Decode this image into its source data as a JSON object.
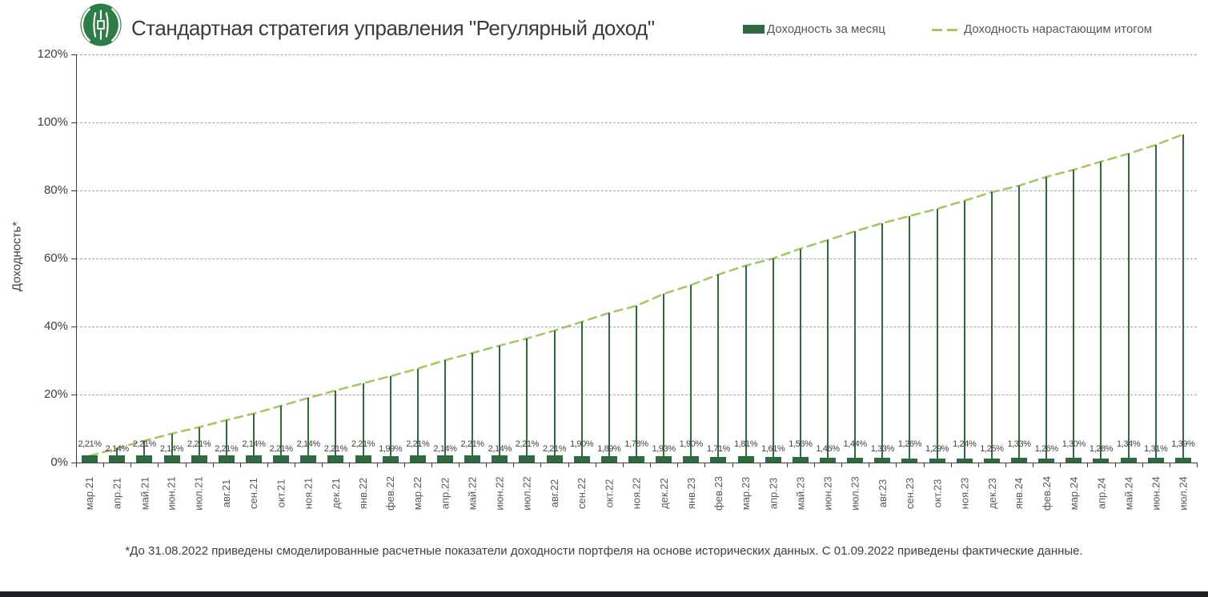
{
  "header": {
    "title": "Стандартная стратегия управления \"Регулярный доход\"",
    "logo_color": "#2e7d46"
  },
  "legend": [
    {
      "label": "Доходность за месяц",
      "swatch": "solid-bar",
      "color": "#2e6b3f"
    },
    {
      "label": "Доходность нарастающим итогом",
      "swatch": "dashed-line",
      "color": "#a4c961"
    }
  ],
  "chart_data": {
    "type": "bar",
    "title": "Стандартная стратегия управления \"Регулярный доход\"",
    "ylabel": "Доходность*",
    "xlabel": "",
    "ylim": [
      0,
      120
    ],
    "ytick_step": 20,
    "yticks": [
      "0%",
      "20%",
      "40%",
      "60%",
      "80%",
      "100%",
      "120%"
    ],
    "grid": "dashed-horizontal",
    "legend_position": "top-right",
    "categories": [
      "мар.21",
      "апр.21",
      "май.21",
      "июн.21",
      "июл.21",
      "авг.21",
      "сен.21",
      "окт.21",
      "ноя.21",
      "дек.21",
      "янв.22",
      "фев.22",
      "мар.22",
      "апр.22",
      "май.22",
      "июн.22",
      "июл.22",
      "авг.22",
      "сен.22",
      "окт.22",
      "ноя.22",
      "дек.22",
      "янв.23",
      "фев.23",
      "мар.23",
      "апр.23",
      "май.23",
      "июн.23",
      "июл.23",
      "авг.23",
      "сен.23",
      "окт.23",
      "ноя.23",
      "дек.23",
      "янв.24",
      "фев.24",
      "мар.24",
      "апр.24",
      "май.24",
      "июн.24",
      "июл.24"
    ],
    "series": [
      {
        "name": "Доходность за месяц",
        "type": "bar",
        "color": "#2e6b3f",
        "values": [
          2.21,
          2.14,
          2.21,
          2.14,
          2.21,
          2.21,
          2.14,
          2.21,
          2.14,
          2.21,
          2.21,
          1.99,
          2.21,
          2.14,
          2.21,
          2.14,
          2.21,
          2.21,
          1.9,
          1.89,
          1.78,
          1.93,
          1.9,
          1.71,
          1.81,
          1.61,
          1.56,
          1.46,
          1.44,
          1.33,
          1.26,
          1.29,
          1.24,
          1.25,
          1.33,
          1.26,
          1.3,
          1.28,
          1.34,
          1.31,
          1.39
        ],
        "data_labels": [
          "2,21%",
          "2,14%",
          "2,21%",
          "2,14%",
          "2,21%",
          "2,21%",
          "2,14%",
          "2,21%",
          "2,14%",
          "2,21%",
          "2,21%",
          "1,99%",
          "2,21%",
          "2,14%",
          "2,21%",
          "2,14%",
          "2,21%",
          "2,21%",
          "1,90%",
          "1,89%",
          "1,78%",
          "1,93%",
          "1,90%",
          "1,71%",
          "1,81%",
          "1,61%",
          "1,56%",
          "1,46%",
          "1,44%",
          "1,33%",
          "1,26%",
          "1,29%",
          "1,24%",
          "1,25%",
          "1,33%",
          "1,26%",
          "1,30%",
          "1,28%",
          "1,34%",
          "1,31%",
          "1,39%"
        ]
      },
      {
        "name": "Доходность нарастающим итогом",
        "type": "line-dashed-with-drop-lines",
        "color": "#a4c961",
        "drop_line_color": "#2e6b3f",
        "values": [
          2.0,
          4.2,
          6.4,
          8.5,
          10.4,
          12.5,
          14.4,
          16.7,
          19.0,
          21.2,
          23.3,
          25.4,
          27.6,
          30.1,
          32.2,
          34.4,
          36.5,
          38.8,
          41.4,
          44.0,
          46.1,
          49.6,
          52.2,
          55.3,
          57.9,
          60.0,
          62.9,
          65.4,
          68.0,
          70.4,
          72.5,
          74.6,
          77.0,
          79.5,
          81.4,
          84.0,
          86.1,
          88.5,
          90.8,
          93.4,
          96.5
        ]
      }
    ]
  },
  "footnote": "*До 31.08.2022 приведены смоделированные расчетные показатели доходности портфеля на основе исторических данных. С 01.09.2022 приведены фактические данные."
}
